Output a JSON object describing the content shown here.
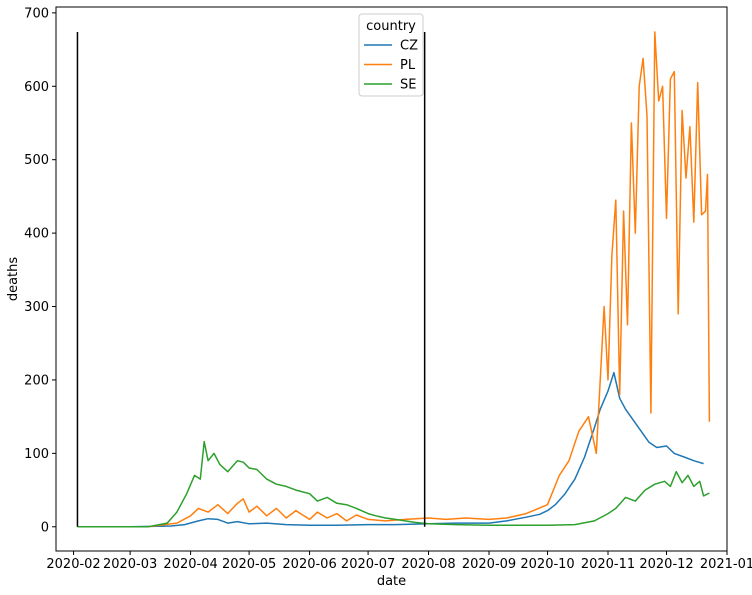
{
  "chart_data": {
    "type": "line",
    "title": "",
    "xlabel": "date",
    "ylabel": "deaths",
    "xlim": [
      "2020-01-23",
      "2021-01-01"
    ],
    "ylim": [
      -33,
      708
    ],
    "x_ticks": [
      "2020-02",
      "2020-03",
      "2020-04",
      "2020-05",
      "2020-06",
      "2020-07",
      "2020-08",
      "2020-09",
      "2020-10",
      "2020-11",
      "2020-12",
      "2021-01"
    ],
    "y_ticks": [
      0,
      100,
      200,
      300,
      400,
      500,
      600,
      700
    ],
    "grid": false,
    "legend": {
      "title": "country",
      "placement": "top-center"
    },
    "vlines": [
      {
        "x": "2020-02-03",
        "ymin": 0,
        "ymax": 674,
        "color": "#000000"
      },
      {
        "x": "2020-07-30",
        "ymin": 0,
        "ymax": 674,
        "color": "#000000"
      }
    ],
    "series": [
      {
        "name": "CZ",
        "color": "#1f77b4",
        "points": [
          [
            "2020-02-03",
            0
          ],
          [
            "2020-03-01",
            0
          ],
          [
            "2020-03-22",
            1
          ],
          [
            "2020-03-29",
            3
          ],
          [
            "2020-04-05",
            8
          ],
          [
            "2020-04-10",
            11
          ],
          [
            "2020-04-15",
            10
          ],
          [
            "2020-04-20",
            5
          ],
          [
            "2020-04-25",
            7
          ],
          [
            "2020-05-01",
            4
          ],
          [
            "2020-05-10",
            5
          ],
          [
            "2020-05-20",
            3
          ],
          [
            "2020-06-01",
            2
          ],
          [
            "2020-06-15",
            2
          ],
          [
            "2020-07-01",
            3
          ],
          [
            "2020-07-15",
            3
          ],
          [
            "2020-08-01",
            4
          ],
          [
            "2020-08-15",
            5
          ],
          [
            "2020-09-01",
            5
          ],
          [
            "2020-09-10",
            8
          ],
          [
            "2020-09-20",
            13
          ],
          [
            "2020-09-27",
            17
          ],
          [
            "2020-10-01",
            22
          ],
          [
            "2020-10-05",
            30
          ],
          [
            "2020-10-10",
            45
          ],
          [
            "2020-10-15",
            65
          ],
          [
            "2020-10-20",
            95
          ],
          [
            "2020-10-25",
            135
          ],
          [
            "2020-10-28",
            160
          ],
          [
            "2020-11-01",
            185
          ],
          [
            "2020-11-04",
            210
          ],
          [
            "2020-11-07",
            175
          ],
          [
            "2020-11-10",
            160
          ],
          [
            "2020-11-14",
            145
          ],
          [
            "2020-11-18",
            130
          ],
          [
            "2020-11-22",
            115
          ],
          [
            "2020-11-26",
            108
          ],
          [
            "2020-12-01",
            110
          ],
          [
            "2020-12-05",
            100
          ],
          [
            "2020-12-10",
            95
          ],
          [
            "2020-12-15",
            90
          ],
          [
            "2020-12-20",
            86
          ]
        ]
      },
      {
        "name": "PL",
        "color": "#ff7f0e",
        "points": [
          [
            "2020-02-03",
            0
          ],
          [
            "2020-03-10",
            0
          ],
          [
            "2020-03-25",
            5
          ],
          [
            "2020-04-01",
            15
          ],
          [
            "2020-04-05",
            25
          ],
          [
            "2020-04-10",
            20
          ],
          [
            "2020-04-15",
            30
          ],
          [
            "2020-04-20",
            18
          ],
          [
            "2020-04-25",
            32
          ],
          [
            "2020-04-28",
            38
          ],
          [
            "2020-05-01",
            20
          ],
          [
            "2020-05-05",
            28
          ],
          [
            "2020-05-10",
            15
          ],
          [
            "2020-05-15",
            25
          ],
          [
            "2020-05-20",
            12
          ],
          [
            "2020-05-25",
            22
          ],
          [
            "2020-06-01",
            10
          ],
          [
            "2020-06-05",
            20
          ],
          [
            "2020-06-10",
            12
          ],
          [
            "2020-06-15",
            18
          ],
          [
            "2020-06-20",
            8
          ],
          [
            "2020-06-25",
            16
          ],
          [
            "2020-07-01",
            10
          ],
          [
            "2020-07-10",
            8
          ],
          [
            "2020-07-20",
            10
          ],
          [
            "2020-08-01",
            12
          ],
          [
            "2020-08-10",
            10
          ],
          [
            "2020-08-20",
            12
          ],
          [
            "2020-09-01",
            10
          ],
          [
            "2020-09-10",
            12
          ],
          [
            "2020-09-20",
            18
          ],
          [
            "2020-10-01",
            30
          ],
          [
            "2020-10-07",
            70
          ],
          [
            "2020-10-12",
            90
          ],
          [
            "2020-10-17",
            130
          ],
          [
            "2020-10-22",
            150
          ],
          [
            "2020-10-26",
            100
          ],
          [
            "2020-10-29",
            250
          ],
          [
            "2020-10-30",
            300
          ],
          [
            "2020-11-01",
            200
          ],
          [
            "2020-11-03",
            370
          ],
          [
            "2020-11-05",
            445
          ],
          [
            "2020-11-07",
            180
          ],
          [
            "2020-11-09",
            430
          ],
          [
            "2020-11-11",
            275
          ],
          [
            "2020-11-13",
            550
          ],
          [
            "2020-11-15",
            400
          ],
          [
            "2020-11-17",
            600
          ],
          [
            "2020-11-19",
            638
          ],
          [
            "2020-11-21",
            560
          ],
          [
            "2020-11-23",
            155
          ],
          [
            "2020-11-25",
            674
          ],
          [
            "2020-11-27",
            580
          ],
          [
            "2020-11-29",
            600
          ],
          [
            "2020-12-01",
            420
          ],
          [
            "2020-12-03",
            610
          ],
          [
            "2020-12-05",
            620
          ],
          [
            "2020-12-07",
            290
          ],
          [
            "2020-12-09",
            567
          ],
          [
            "2020-12-11",
            475
          ],
          [
            "2020-12-13",
            545
          ],
          [
            "2020-12-15",
            415
          ],
          [
            "2020-12-17",
            605
          ],
          [
            "2020-12-19",
            425
          ],
          [
            "2020-12-21",
            430
          ],
          [
            "2020-12-22",
            480
          ],
          [
            "2020-12-23",
            143
          ]
        ]
      },
      {
        "name": "SE",
        "color": "#2ca02c",
        "points": [
          [
            "2020-02-03",
            0
          ],
          [
            "2020-03-10",
            0
          ],
          [
            "2020-03-20",
            5
          ],
          [
            "2020-03-25",
            20
          ],
          [
            "2020-03-30",
            45
          ],
          [
            "2020-04-03",
            70
          ],
          [
            "2020-04-06",
            65
          ],
          [
            "2020-04-08",
            116
          ],
          [
            "2020-04-10",
            90
          ],
          [
            "2020-04-13",
            100
          ],
          [
            "2020-04-16",
            85
          ],
          [
            "2020-04-20",
            75
          ],
          [
            "2020-04-25",
            90
          ],
          [
            "2020-04-28",
            88
          ],
          [
            "2020-05-01",
            80
          ],
          [
            "2020-05-05",
            78
          ],
          [
            "2020-05-10",
            65
          ],
          [
            "2020-05-15",
            58
          ],
          [
            "2020-05-20",
            55
          ],
          [
            "2020-05-25",
            50
          ],
          [
            "2020-06-01",
            45
          ],
          [
            "2020-06-05",
            35
          ],
          [
            "2020-06-10",
            40
          ],
          [
            "2020-06-15",
            32
          ],
          [
            "2020-06-20",
            30
          ],
          [
            "2020-06-25",
            25
          ],
          [
            "2020-07-01",
            18
          ],
          [
            "2020-07-05",
            15
          ],
          [
            "2020-07-10",
            12
          ],
          [
            "2020-07-15",
            10
          ],
          [
            "2020-07-20",
            8
          ],
          [
            "2020-07-25",
            6
          ],
          [
            "2020-08-01",
            4
          ],
          [
            "2020-08-15",
            3
          ],
          [
            "2020-09-01",
            2
          ],
          [
            "2020-09-15",
            2
          ],
          [
            "2020-10-01",
            2
          ],
          [
            "2020-10-15",
            3
          ],
          [
            "2020-10-25",
            8
          ],
          [
            "2020-11-01",
            18
          ],
          [
            "2020-11-05",
            25
          ],
          [
            "2020-11-10",
            40
          ],
          [
            "2020-11-15",
            35
          ],
          [
            "2020-11-20",
            50
          ],
          [
            "2020-11-25",
            58
          ],
          [
            "2020-11-30",
            62
          ],
          [
            "2020-12-03",
            55
          ],
          [
            "2020-12-06",
            75
          ],
          [
            "2020-12-09",
            60
          ],
          [
            "2020-12-12",
            70
          ],
          [
            "2020-12-15",
            55
          ],
          [
            "2020-12-18",
            62
          ],
          [
            "2020-12-20",
            42
          ],
          [
            "2020-12-23",
            46
          ]
        ]
      }
    ]
  }
}
